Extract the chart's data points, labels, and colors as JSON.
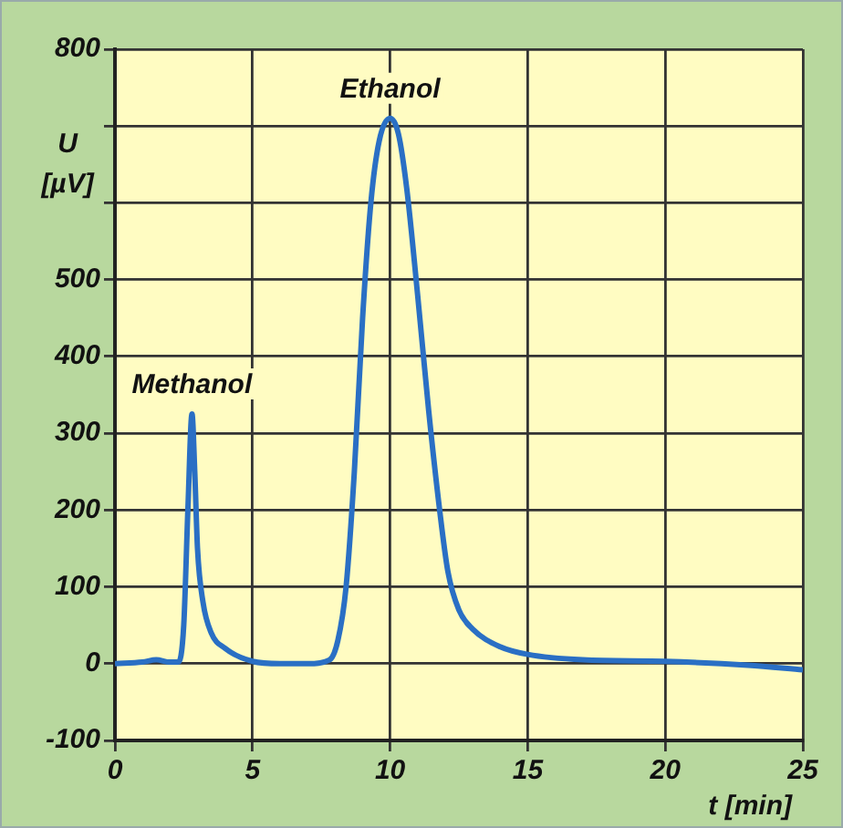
{
  "chart_data": {
    "type": "line",
    "xlabel": "t [min]",
    "ylabel": "U [µV]",
    "x": [
      0,
      1,
      1.5,
      2,
      2.3,
      2.5,
      2.65,
      2.8,
      2.9,
      3.0,
      3.2,
      3.5,
      4,
      5,
      6,
      7,
      7.8,
      8.1,
      8.4,
      8.7,
      9.0,
      9.3,
      9.6,
      10,
      10.3,
      10.6,
      11,
      11.4,
      11.8,
      12.1,
      12.5,
      13,
      14,
      15,
      17,
      20,
      23,
      25
    ],
    "series": [
      {
        "color": "#2a6fc4",
        "values": [
          0,
          2,
          5,
          2,
          2,
          50,
          200,
          325,
          250,
          150,
          80,
          40,
          20,
          3,
          0,
          0,
          5,
          30,
          100,
          250,
          450,
          600,
          680,
          710,
          690,
          620,
          480,
          330,
          200,
          120,
          70,
          45,
          22,
          12,
          5,
          3,
          -2,
          -8
        ]
      }
    ],
    "xlim": [
      0,
      25
    ],
    "xticks": [
      0,
      5,
      10,
      15,
      20,
      25
    ],
    "ylim": [
      -100,
      800
    ],
    "yticks": [
      -100,
      0,
      100,
      200,
      300,
      400,
      500,
      {
        "value": 600,
        "label": null
      },
      {
        "value": 700,
        "label": null
      },
      800
    ],
    "grid": true,
    "legend": false,
    "marker": "none",
    "line_style": "solid",
    "annotations": [
      {
        "text": "Methanol",
        "x": 2.8,
        "y": 325
      },
      {
        "text": "Ethanol",
        "x": 10,
        "y": 710
      }
    ]
  }
}
